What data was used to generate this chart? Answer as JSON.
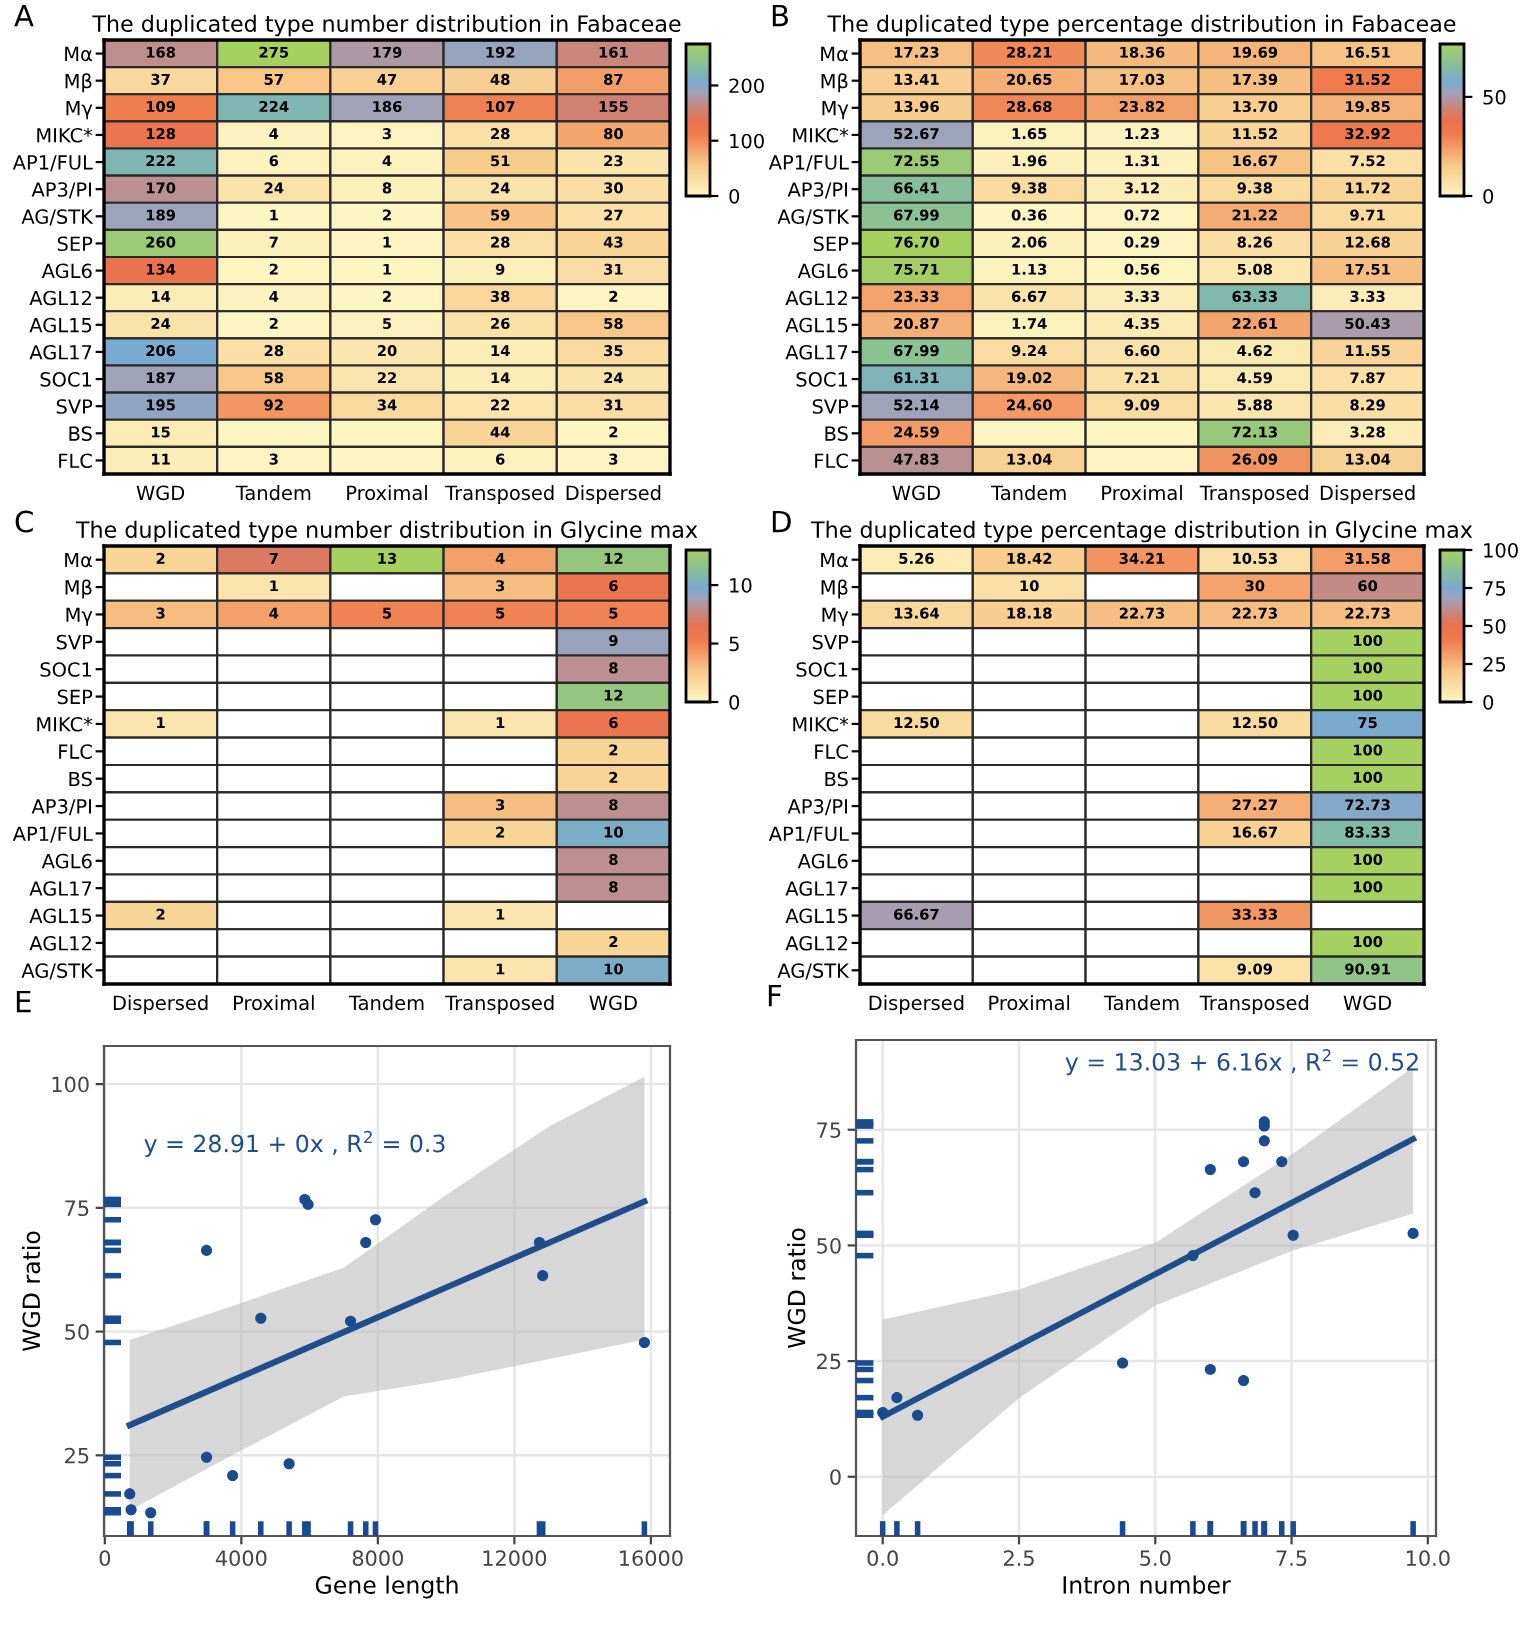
{
  "chart_data": [
    {
      "type": "heatmap",
      "title": "The duplicated type number distribution in Fabaceae",
      "annotations": [
        "A"
      ],
      "categories": [
        "WGD",
        "Tandem",
        "Proximal",
        "Transposed",
        "Dispersed"
      ],
      "y_categories": [
        "Mα",
        "Mβ",
        "Mγ",
        "MIKC*",
        "AP1/FUL",
        "AP3/PI",
        "AG/STK",
        "SEP",
        "AGL6",
        "AGL12",
        "AGL15",
        "AGL17",
        "SOC1",
        "SVP",
        "BS",
        "FLC"
      ],
      "cells": [
        [
          168,
          275,
          179,
          192,
          161
        ],
        [
          37,
          57,
          47,
          48,
          87
        ],
        [
          109,
          224,
          186,
          107,
          155
        ],
        [
          128,
          4,
          3,
          28,
          80
        ],
        [
          222,
          6,
          4,
          51,
          23
        ],
        [
          170,
          24,
          8,
          24,
          30
        ],
        [
          189,
          1,
          2,
          59,
          27
        ],
        [
          260,
          7,
          1,
          28,
          43
        ],
        [
          134,
          2,
          1,
          9,
          31
        ],
        [
          14,
          4,
          2,
          38,
          2
        ],
        [
          24,
          2,
          5,
          26,
          58
        ],
        [
          206,
          28,
          20,
          14,
          35
        ],
        [
          187,
          58,
          22,
          14,
          24
        ],
        [
          195,
          92,
          34,
          22,
          31
        ],
        [
          15,
          0,
          0,
          44,
          2
        ],
        [
          11,
          3,
          0,
          6,
          3
        ]
      ],
      "cell_labels": [
        [
          "168",
          "275",
          "179",
          "192",
          "161"
        ],
        [
          "37",
          "57",
          "47",
          "48",
          "87"
        ],
        [
          "109",
          "224",
          "186",
          "107",
          "155"
        ],
        [
          "128",
          "4",
          "3",
          "28",
          "80"
        ],
        [
          "222",
          "6",
          "4",
          "51",
          "23"
        ],
        [
          "170",
          "24",
          "8",
          "24",
          "30"
        ],
        [
          "189",
          "1",
          "2",
          "59",
          "27"
        ],
        [
          "260",
          "7",
          "1",
          "28",
          "43"
        ],
        [
          "134",
          "2",
          "1",
          "9",
          "31"
        ],
        [
          "14",
          "4",
          "2",
          "38",
          "2"
        ],
        [
          "24",
          "2",
          "5",
          "26",
          "58"
        ],
        [
          "206",
          "28",
          "20",
          "14",
          "35"
        ],
        [
          "187",
          "58",
          "22",
          "14",
          "24"
        ],
        [
          "195",
          "92",
          "34",
          "22",
          "31"
        ],
        [
          "15",
          null,
          null,
          "44",
          "2"
        ],
        [
          "11",
          "3",
          null,
          "6",
          "3"
        ]
      ],
      "clim": [
        0,
        275
      ],
      "cticks": [
        0,
        100,
        200
      ]
    },
    {
      "type": "heatmap",
      "title": "The duplicated type percentage distribution in Fabaceae",
      "annotations": [
        "B"
      ],
      "categories": [
        "WGD",
        "Tandem",
        "Proximal",
        "Transposed",
        "Dispersed"
      ],
      "y_categories": [
        "Mα",
        "Mβ",
        "Mγ",
        "MIKC*",
        "AP1/FUL",
        "AP3/PI",
        "AG/STK",
        "SEP",
        "AGL6",
        "AGL12",
        "AGL15",
        "AGL17",
        "SOC1",
        "SVP",
        "BS",
        "FLC"
      ],
      "cells": [
        [
          17.23,
          28.21,
          18.36,
          19.69,
          16.51
        ],
        [
          13.41,
          20.65,
          17.03,
          17.39,
          31.52
        ],
        [
          13.96,
          28.68,
          23.82,
          13.7,
          19.85
        ],
        [
          52.67,
          1.65,
          1.23,
          11.52,
          32.92
        ],
        [
          72.55,
          1.96,
          1.31,
          16.67,
          7.52
        ],
        [
          66.41,
          9.38,
          3.12,
          9.38,
          11.72
        ],
        [
          67.99,
          0.36,
          0.72,
          21.22,
          9.71
        ],
        [
          76.7,
          2.06,
          0.29,
          8.26,
          12.68
        ],
        [
          75.71,
          1.13,
          0.56,
          5.08,
          17.51
        ],
        [
          23.33,
          6.67,
          3.33,
          63.33,
          3.33
        ],
        [
          20.87,
          1.74,
          4.35,
          22.61,
          50.43
        ],
        [
          67.99,
          9.24,
          6.6,
          4.62,
          11.55
        ],
        [
          61.31,
          19.02,
          7.21,
          4.59,
          7.87
        ],
        [
          52.14,
          24.6,
          9.09,
          5.88,
          8.29
        ],
        [
          24.59,
          0,
          0,
          72.13,
          3.28
        ],
        [
          47.83,
          13.04,
          0,
          26.09,
          13.04
        ]
      ],
      "cell_labels": [
        [
          "17.23",
          "28.21",
          "18.36",
          "19.69",
          "16.51"
        ],
        [
          "13.41",
          "20.65",
          "17.03",
          "17.39",
          "31.52"
        ],
        [
          "13.96",
          "28.68",
          "23.82",
          "13.70",
          "19.85"
        ],
        [
          "52.67",
          "1.65",
          "1.23",
          "11.52",
          "32.92"
        ],
        [
          "72.55",
          "1.96",
          "1.31",
          "16.67",
          "7.52"
        ],
        [
          "66.41",
          "9.38",
          "3.12",
          "9.38",
          "11.72"
        ],
        [
          "67.99",
          "0.36",
          "0.72",
          "21.22",
          "9.71"
        ],
        [
          "76.70",
          "2.06",
          "0.29",
          "8.26",
          "12.68"
        ],
        [
          "75.71",
          "1.13",
          "0.56",
          "5.08",
          "17.51"
        ],
        [
          "23.33",
          "6.67",
          "3.33",
          "63.33",
          "3.33"
        ],
        [
          "20.87",
          "1.74",
          "4.35",
          "22.61",
          "50.43"
        ],
        [
          "67.99",
          "9.24",
          "6.60",
          "4.62",
          "11.55"
        ],
        [
          "61.31",
          "19.02",
          "7.21",
          "4.59",
          "7.87"
        ],
        [
          "52.14",
          "24.60",
          "9.09",
          "5.88",
          "8.29"
        ],
        [
          "24.59",
          null,
          null,
          "72.13",
          "3.28"
        ],
        [
          "47.83",
          "13.04",
          null,
          "26.09",
          "13.04"
        ]
      ],
      "clim": [
        0,
        76.7
      ],
      "cticks": [
        0,
        50
      ]
    },
    {
      "type": "heatmap",
      "title": "The duplicated type number distribution in Glycine max",
      "annotations": [
        "C"
      ],
      "categories": [
        "Dispersed",
        "Proximal",
        "Tandem",
        "Transposed",
        "WGD"
      ],
      "y_categories": [
        "Mα",
        "Mβ",
        "Mγ",
        "SVP",
        "SOC1",
        "SEP",
        "MIKC*",
        "FLC",
        "BS",
        "AP3/PI",
        "AP1/FUL",
        "AGL6",
        "AGL17",
        "AGL15",
        "AGL12",
        "AG/STK"
      ],
      "cells": [
        [
          2,
          7,
          13,
          4,
          12
        ],
        [
          null,
          1,
          null,
          3,
          6
        ],
        [
          3,
          4,
          5,
          5,
          5
        ],
        [
          null,
          null,
          null,
          null,
          9
        ],
        [
          null,
          null,
          null,
          null,
          8
        ],
        [
          null,
          null,
          null,
          null,
          12
        ],
        [
          1,
          null,
          null,
          1,
          6
        ],
        [
          null,
          null,
          null,
          null,
          2
        ],
        [
          null,
          null,
          null,
          null,
          2
        ],
        [
          null,
          null,
          null,
          3,
          8
        ],
        [
          null,
          null,
          null,
          2,
          10
        ],
        [
          null,
          null,
          null,
          null,
          8
        ],
        [
          null,
          null,
          null,
          null,
          8
        ],
        [
          2,
          null,
          null,
          1,
          null
        ],
        [
          null,
          null,
          null,
          null,
          2
        ],
        [
          null,
          null,
          null,
          1,
          10
        ]
      ],
      "data_labels": true,
      "clim": [
        0,
        13
      ],
      "cticks": [
        0,
        5,
        10
      ]
    },
    {
      "type": "heatmap",
      "title": "The duplicated type percentage distribution in Glycine max",
      "annotations": [
        "D"
      ],
      "categories": [
        "Dispersed",
        "Proximal",
        "Tandem",
        "Transposed",
        "WGD"
      ],
      "y_categories": [
        "Mα",
        "Mβ",
        "Mγ",
        "SVP",
        "SOC1",
        "SEP",
        "MIKC*",
        "FLC",
        "BS",
        "AP3/PI",
        "AP1/FUL",
        "AGL6",
        "AGL17",
        "AGL15",
        "AGL12",
        "AG/STK"
      ],
      "cells": [
        [
          5.26,
          18.42,
          34.21,
          10.53,
          31.58
        ],
        [
          null,
          10,
          null,
          30,
          60
        ],
        [
          13.64,
          18.18,
          22.73,
          22.73,
          22.73
        ],
        [
          null,
          null,
          null,
          null,
          100
        ],
        [
          null,
          null,
          null,
          null,
          100
        ],
        [
          null,
          null,
          null,
          null,
          100
        ],
        [
          12.5,
          null,
          null,
          12.5,
          75
        ],
        [
          null,
          null,
          null,
          null,
          100
        ],
        [
          null,
          null,
          null,
          null,
          100
        ],
        [
          null,
          null,
          null,
          27.27,
          72.73
        ],
        [
          null,
          null,
          null,
          16.67,
          83.33
        ],
        [
          null,
          null,
          null,
          null,
          100
        ],
        [
          null,
          null,
          null,
          null,
          100
        ],
        [
          66.67,
          null,
          null,
          33.33,
          null
        ],
        [
          null,
          null,
          null,
          null,
          100
        ],
        [
          null,
          null,
          null,
          9.09,
          90.91
        ]
      ],
      "cell_labels": [
        [
          "5.26",
          "18.42",
          "34.21",
          "10.53",
          "31.58"
        ],
        [
          null,
          "10",
          null,
          "30",
          "60"
        ],
        [
          "13.64",
          "18.18",
          "22.73",
          "22.73",
          "22.73"
        ],
        [
          null,
          null,
          null,
          null,
          "100"
        ],
        [
          null,
          null,
          null,
          null,
          "100"
        ],
        [
          null,
          null,
          null,
          null,
          "100"
        ],
        [
          "12.50",
          null,
          null,
          "12.50",
          "75"
        ],
        [
          null,
          null,
          null,
          null,
          "100"
        ],
        [
          null,
          null,
          null,
          null,
          "100"
        ],
        [
          null,
          null,
          null,
          "27.27",
          "72.73"
        ],
        [
          null,
          null,
          null,
          "16.67",
          "83.33"
        ],
        [
          null,
          null,
          null,
          null,
          "100"
        ],
        [
          null,
          null,
          null,
          null,
          "100"
        ],
        [
          "66.67",
          null,
          null,
          "33.33",
          null
        ],
        [
          null,
          null,
          null,
          null,
          "100"
        ],
        [
          null,
          null,
          null,
          "9.09",
          "90.91"
        ]
      ],
      "clim": [
        0,
        100
      ],
      "cticks": [
        0,
        25,
        50,
        75,
        100
      ]
    },
    {
      "type": "scatter",
      "xlabel": "Gene length",
      "ylabel": "WGD ratio",
      "annotations": [
        "E",
        "y = 28.91 + 0x , R$^{2}$ = 0.3"
      ],
      "xlim": [
        -24,
        16560
      ],
      "ylim": [
        8.7,
        107.7
      ],
      "xticks": [
        0,
        4000,
        8000,
        12000,
        16000
      ],
      "yticks": [
        25,
        50,
        75,
        100
      ],
      "grid": true,
      "series": [
        {
          "type": "scatter",
          "marker": "circle",
          "color": "#1b4b8f",
          "x": [
            730,
            770,
            1345,
            2980,
            2980,
            3745,
            4570,
            5400,
            5860,
            5955,
            7200,
            7645,
            7930,
            12735,
            12830,
            15810
          ],
          "values": [
            17.2,
            14.0,
            13.4,
            66.4,
            24.6,
            20.9,
            52.7,
            23.3,
            76.7,
            75.7,
            52.1,
            68.0,
            72.6,
            68.0,
            61.3,
            47.8
          ]
        },
        {
          "type": "line",
          "marker": "none",
          "color": "#1f4e8c",
          "x": [
            730,
            4000,
            7000,
            10000,
            13000,
            15810
          ],
          "values": [
            31.1,
            40.9,
            49.9,
            58.9,
            67.9,
            76.3
          ],
          "lower": [
            13.9,
            26.0,
            36.9,
            40.2,
            44.4,
            48.4
          ],
          "upper": [
            48.3,
            55.8,
            62.9,
            77.6,
            91.4,
            101.5
          ]
        }
      ]
    },
    {
      "type": "scatter",
      "xlabel": "Intron number",
      "ylabel": "WGD ratio",
      "annotations": [
        "F",
        "y = 13.03 + 6.16x , R$^{2}$ = 0.52"
      ],
      "xlim": [
        -0.49,
        10.15
      ],
      "ylim": [
        -12.8,
        94.4
      ],
      "xticks": [
        {
          "value": 0,
          "label": "0.0"
        },
        2.5,
        {
          "value": 5,
          "label": "5.0"
        },
        7.5,
        {
          "value": 10,
          "label": "10.0"
        }
      ],
      "yticks": [
        0,
        25,
        50,
        75
      ],
      "grid": true,
      "series": [
        {
          "type": "scatter",
          "marker": "circle",
          "color": "#1b4b8f",
          "x": [
            0.0,
            0.26,
            0.64,
            4.4,
            5.69,
            6.01,
            6.01,
            6.62,
            6.62,
            6.83,
            7.0,
            7.0,
            7.0,
            7.32,
            7.53,
            9.73
          ],
          "values": [
            13.9,
            17.1,
            13.3,
            24.6,
            47.8,
            66.4,
            23.2,
            68.1,
            20.8,
            61.4,
            76.7,
            75.8,
            72.6,
            68.1,
            52.2,
            52.6
          ]
        },
        {
          "type": "line",
          "marker": "none",
          "color": "#1f4e8c",
          "x": [
            0,
            2.5,
            5,
            7.5,
            9.73
          ],
          "values": [
            13.0,
            28.4,
            43.8,
            59.2,
            73.0
          ],
          "lower": [
            -8.3,
            17.0,
            37.0,
            48.8,
            56.9
          ],
          "upper": [
            34.0,
            40.5,
            50.6,
            69.6,
            88.5
          ]
        }
      ]
    }
  ]
}
